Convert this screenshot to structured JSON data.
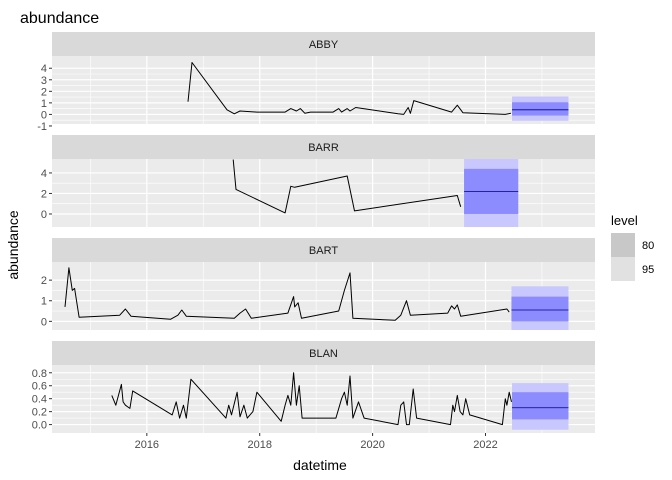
{
  "chart_data": {
    "type": "line",
    "title": "abundance",
    "xlabel": "datetime",
    "ylabel": "abundance",
    "xlim": [
      2014.32,
      2023.94
    ],
    "x_ticks": [
      2016,
      2018,
      2020,
      2022
    ],
    "x_minor_ticks": [
      2015,
      2017,
      2019,
      2021,
      2023
    ],
    "grid": true,
    "legend": {
      "title": "level",
      "position": "right",
      "entries": [
        {
          "label": "80",
          "color": "#c8c8c8"
        },
        {
          "label": "95",
          "color": "#e1e1e1"
        }
      ]
    },
    "colors": {
      "panel_bg": "#ebebeb",
      "grid": "#ffffff",
      "strip_bg": "#d9d9d9",
      "line": "#000000",
      "forecast_line": "#00008b",
      "interval_80": "#8c8cff",
      "interval_95": "#c8c8ff"
    },
    "panels": [
      {
        "name": "ABBY",
        "ylim": [
          -0.83,
          5.06
        ],
        "y_ticks": [
          -1,
          0,
          1,
          2,
          3,
          4
        ],
        "y_tick_labels": [
          "-1",
          "0",
          "1",
          "2",
          "3",
          "4"
        ],
        "observed": [
          [
            2016.73,
            1.1
          ],
          [
            2016.8,
            4.5
          ],
          [
            2017.42,
            0.4
          ],
          [
            2017.55,
            0.05
          ],
          [
            2017.65,
            0.3
          ],
          [
            2017.95,
            0.2
          ],
          [
            2018.45,
            0.2
          ],
          [
            2018.55,
            0.5
          ],
          [
            2018.65,
            0.3
          ],
          [
            2018.72,
            0.5
          ],
          [
            2018.8,
            0.1
          ],
          [
            2018.9,
            0.2
          ],
          [
            2019.3,
            0.2
          ],
          [
            2019.4,
            0.5
          ],
          [
            2019.45,
            0.2
          ],
          [
            2019.55,
            0.5
          ],
          [
            2019.6,
            0.3
          ],
          [
            2019.7,
            0.6
          ],
          [
            2020.45,
            0.05
          ],
          [
            2020.55,
            0.0
          ],
          [
            2020.63,
            0.6
          ],
          [
            2020.67,
            0.1
          ],
          [
            2020.73,
            1.2
          ],
          [
            2021.4,
            0.2
          ],
          [
            2021.5,
            0.8
          ],
          [
            2021.6,
            0.15
          ],
          [
            2022.35,
            0.0
          ],
          [
            2022.45,
            0.1
          ]
        ],
        "forecast": {
          "x_start": 2022.47,
          "x_end": 2023.47,
          "mean": 0.4,
          "lo80": -0.1,
          "hi80": 1.05,
          "lo95": -0.55,
          "hi95": 1.55
        }
      },
      {
        "name": "BARR",
        "ylim": [
          -1.27,
          5.36
        ],
        "y_ticks": [
          0,
          2,
          4
        ],
        "y_tick_labels": [
          "0",
          "2",
          "4"
        ],
        "observed": [
          [
            2017.53,
            5.3
          ],
          [
            2017.58,
            2.4
          ],
          [
            2018.45,
            0.1
          ],
          [
            2018.55,
            2.7
          ],
          [
            2018.62,
            2.6
          ],
          [
            2019.55,
            3.7
          ],
          [
            2019.68,
            0.3
          ],
          [
            2021.5,
            1.8
          ],
          [
            2021.56,
            0.7
          ]
        ],
        "forecast": {
          "x_start": 2021.62,
          "x_end": 2022.58,
          "mean": 2.2,
          "lo80": 0.0,
          "hi80": 4.4,
          "lo95": -1.27,
          "hi95": 5.36
        }
      },
      {
        "name": "BART",
        "ylim": [
          -0.42,
          2.88
        ],
        "y_ticks": [
          0,
          1,
          2
        ],
        "y_tick_labels": [
          "0",
          "1",
          "2"
        ],
        "observed": [
          [
            2014.55,
            0.7
          ],
          [
            2014.62,
            2.6
          ],
          [
            2014.68,
            1.5
          ],
          [
            2014.72,
            1.6
          ],
          [
            2014.8,
            0.2
          ],
          [
            2015.52,
            0.3
          ],
          [
            2015.62,
            0.6
          ],
          [
            2015.72,
            0.25
          ],
          [
            2016.42,
            0.1
          ],
          [
            2016.55,
            0.3
          ],
          [
            2016.62,
            0.55
          ],
          [
            2016.7,
            0.25
          ],
          [
            2017.55,
            0.15
          ],
          [
            2017.65,
            0.4
          ],
          [
            2017.75,
            0.6
          ],
          [
            2017.85,
            0.15
          ],
          [
            2018.5,
            0.4
          ],
          [
            2018.6,
            1.2
          ],
          [
            2018.62,
            0.7
          ],
          [
            2018.68,
            0.9
          ],
          [
            2018.74,
            0.15
          ],
          [
            2019.4,
            0.5
          ],
          [
            2019.5,
            1.5
          ],
          [
            2019.6,
            2.35
          ],
          [
            2019.65,
            0.15
          ],
          [
            2020.4,
            0.05
          ],
          [
            2020.5,
            0.3
          ],
          [
            2020.6,
            1.0
          ],
          [
            2020.67,
            0.3
          ],
          [
            2021.33,
            0.4
          ],
          [
            2021.4,
            0.75
          ],
          [
            2021.45,
            0.6
          ],
          [
            2021.5,
            0.8
          ],
          [
            2021.56,
            0.25
          ],
          [
            2022.38,
            0.6
          ],
          [
            2022.42,
            0.45
          ]
        ],
        "forecast": {
          "x_start": 2022.46,
          "x_end": 2023.47,
          "mean": 0.55,
          "lo80": 0.0,
          "hi80": 1.2,
          "lo95": -0.42,
          "hi95": 1.7
        }
      },
      {
        "name": "BLAN",
        "ylim": [
          -0.13,
          0.92
        ],
        "y_ticks": [
          0.0,
          0.2,
          0.4,
          0.6,
          0.8
        ],
        "y_tick_labels": [
          "0.0",
          "0.2",
          "0.4",
          "0.6",
          "0.8"
        ],
        "observed": [
          [
            2015.38,
            0.45
          ],
          [
            2015.45,
            0.3
          ],
          [
            2015.55,
            0.62
          ],
          [
            2015.58,
            0.35
          ],
          [
            2015.62,
            0.3
          ],
          [
            2015.7,
            0.25
          ],
          [
            2015.75,
            0.52
          ],
          [
            2016.45,
            0.15
          ],
          [
            2016.52,
            0.35
          ],
          [
            2016.58,
            0.1
          ],
          [
            2016.65,
            0.3
          ],
          [
            2016.7,
            0.1
          ],
          [
            2016.78,
            0.7
          ],
          [
            2017.4,
            0.1
          ],
          [
            2017.45,
            0.3
          ],
          [
            2017.5,
            0.15
          ],
          [
            2017.6,
            0.5
          ],
          [
            2017.65,
            0.12
          ],
          [
            2017.72,
            0.3
          ],
          [
            2017.78,
            0.1
          ],
          [
            2017.88,
            0.2
          ],
          [
            2017.95,
            0.5
          ],
          [
            2018.38,
            0.05
          ],
          [
            2018.45,
            0.3
          ],
          [
            2018.5,
            0.45
          ],
          [
            2018.55,
            0.3
          ],
          [
            2018.6,
            0.8
          ],
          [
            2018.65,
            0.3
          ],
          [
            2018.7,
            0.6
          ],
          [
            2018.75,
            0.1
          ],
          [
            2019.35,
            0.1
          ],
          [
            2019.45,
            0.4
          ],
          [
            2019.5,
            0.5
          ],
          [
            2019.55,
            0.3
          ],
          [
            2019.6,
            0.75
          ],
          [
            2019.65,
            0.1
          ],
          [
            2019.75,
            0.35
          ],
          [
            2019.85,
            0.1
          ],
          [
            2020.45,
            0.0
          ],
          [
            2020.5,
            0.3
          ],
          [
            2020.55,
            0.35
          ],
          [
            2020.6,
            0.0
          ],
          [
            2020.65,
            0.0
          ],
          [
            2020.72,
            0.55
          ],
          [
            2020.78,
            0.1
          ],
          [
            2021.38,
            0.0
          ],
          [
            2021.42,
            0.3
          ],
          [
            2021.45,
            0.2
          ],
          [
            2021.5,
            0.45
          ],
          [
            2021.55,
            0.2
          ],
          [
            2021.6,
            0.15
          ],
          [
            2021.65,
            0.4
          ],
          [
            2021.72,
            0.15
          ],
          [
            2022.3,
            0.0
          ],
          [
            2022.35,
            0.4
          ],
          [
            2022.38,
            0.3
          ],
          [
            2022.42,
            0.5
          ],
          [
            2022.46,
            0.35
          ]
        ],
        "forecast": {
          "x_start": 2022.47,
          "x_end": 2023.47,
          "mean": 0.26,
          "lo80": 0.08,
          "hi80": 0.5,
          "lo95": -0.08,
          "hi95": 0.64
        }
      }
    ]
  }
}
